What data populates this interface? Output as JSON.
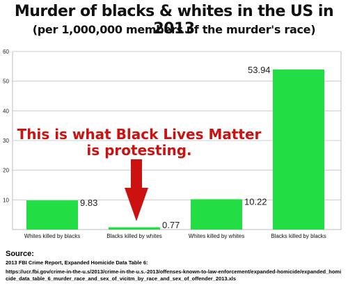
{
  "chart_data": {
    "type": "bar",
    "title": "Murder of blacks & whites in the US in 2013",
    "subtitle": "(per 1,000,000 members of the murder's race)",
    "categories": [
      "Whites killed by blacks",
      "Blacks killed by whites",
      "Whites killed by whites",
      "Blacks killed by blacks"
    ],
    "values": [
      9.83,
      0.77,
      10.22,
      53.94
    ],
    "value_labels": [
      "9.83",
      "0.77",
      "10.22",
      "53.94"
    ],
    "ylim": [
      0,
      60
    ],
    "yticks": [
      10,
      20,
      30,
      40,
      50,
      60
    ],
    "grid": true,
    "bar_color": "#22dd44",
    "annotation": {
      "line1": "This is what Black Lives Matter",
      "line2": "is protesting.",
      "color": "#cc1111",
      "target_category": "Blacks killed by whites"
    }
  },
  "source": {
    "heading": "Source:",
    "text": "2013 FBI Crime Report, Expanded Homicide Data Table 6:",
    "url": "https://ucr.fbi.gov/crime-in-the-u.s/2013/crime-in-the-u.s.-2013/offenses-known-to-law-enforcement/expanded-homicide/expanded_homicide_data_table_6_murder_race_and_sex_of_vicitm_by_race_and_sex_of_offender_2013.xls"
  }
}
